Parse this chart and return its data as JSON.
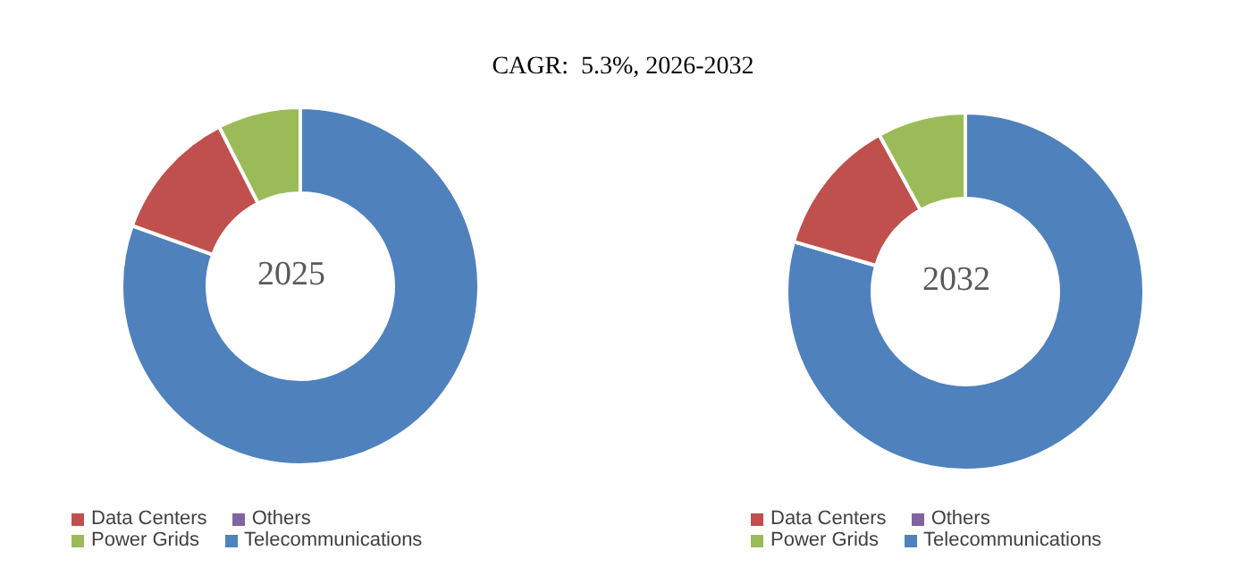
{
  "chart_data": [
    {
      "type": "donut",
      "title": "CAGR:  5.3%, 2026-2032",
      "annotations": [
        "2025"
      ],
      "categories": [
        "Telecommunications",
        "Data Centers",
        "Power Grids",
        "Others"
      ],
      "values": [
        80.5,
        12,
        7.5,
        0
      ],
      "colors": [
        "#4f81bd",
        "#c0504d",
        "#9bbb59",
        "#8064a2"
      ],
      "legend": "bottom"
    },
    {
      "type": "donut",
      "annotations": [
        "2032"
      ],
      "categories": [
        "Telecommunications",
        "Data Centers",
        "Power Grids",
        "Others"
      ],
      "values": [
        79.5,
        12.5,
        8,
        0
      ],
      "colors": [
        "#4f81bd",
        "#c0504d",
        "#9bbb59",
        "#8064a2"
      ],
      "legend": "bottom"
    }
  ]
}
